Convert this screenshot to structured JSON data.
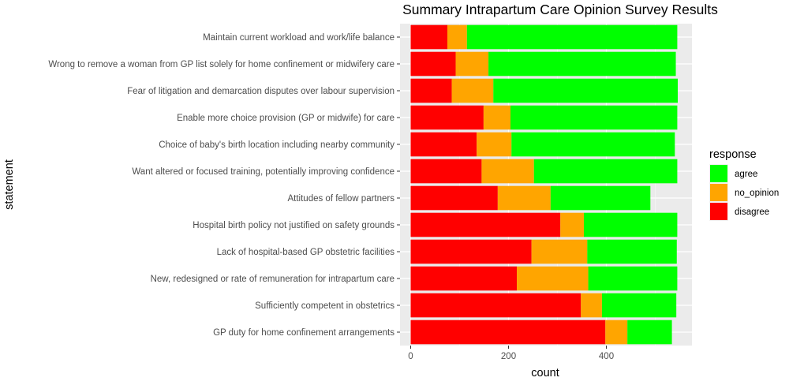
{
  "chart_data": {
    "type": "bar",
    "orientation": "horizontal",
    "stacked": true,
    "title": "Summary Intrapartum Care Opinion Survey Results",
    "xlabel": "count",
    "ylabel": "statement",
    "xlim": [
      0,
      575
    ],
    "xticks": [
      0,
      200,
      400
    ],
    "xtick_labels": [
      "0",
      "200",
      "400"
    ],
    "grid": true,
    "legend": {
      "title": "response",
      "placement": "right",
      "entries": [
        {
          "label": "agree",
          "color": "#00FF00"
        },
        {
          "label": "no_opinion",
          "color": "#FFA500"
        },
        {
          "label": "disagree",
          "color": "#FF0000"
        }
      ]
    },
    "categories": [
      "Maintain current workload and work/life balance",
      "Wrong to remove a woman from GP list solely for home confinement or midwifery care",
      "Fear of litigation and demarcation disputes over labour supervision",
      "Enable more choice provision (GP or midwife) for care",
      "Choice of baby's birth location including nearby community",
      "Want altered or focused training, potentially improving confidence",
      "Attitudes of fellow partners",
      "Hospital birth policy not justified on safety grounds",
      "Lack of hospital-based GP obstetric facilities",
      "New, redesigned or rate of remuneration for intrapartum care",
      "Sufficiently competent in obstetrics",
      "GP duty for home confinement arrangements"
    ],
    "series": [
      {
        "name": "disagree",
        "color": "#FF0000",
        "values": [
          75,
          92,
          84,
          149,
          135,
          145,
          178,
          306,
          247,
          217,
          348,
          398
        ]
      },
      {
        "name": "no_opinion",
        "color": "#FFA500",
        "values": [
          40,
          67,
          85,
          55,
          71,
          107,
          108,
          48,
          114,
          146,
          43,
          45
        ]
      },
      {
        "name": "agree",
        "color": "#00FF00",
        "values": [
          430,
          383,
          377,
          341,
          334,
          293,
          204,
          191,
          183,
          182,
          152,
          91
        ]
      }
    ]
  }
}
